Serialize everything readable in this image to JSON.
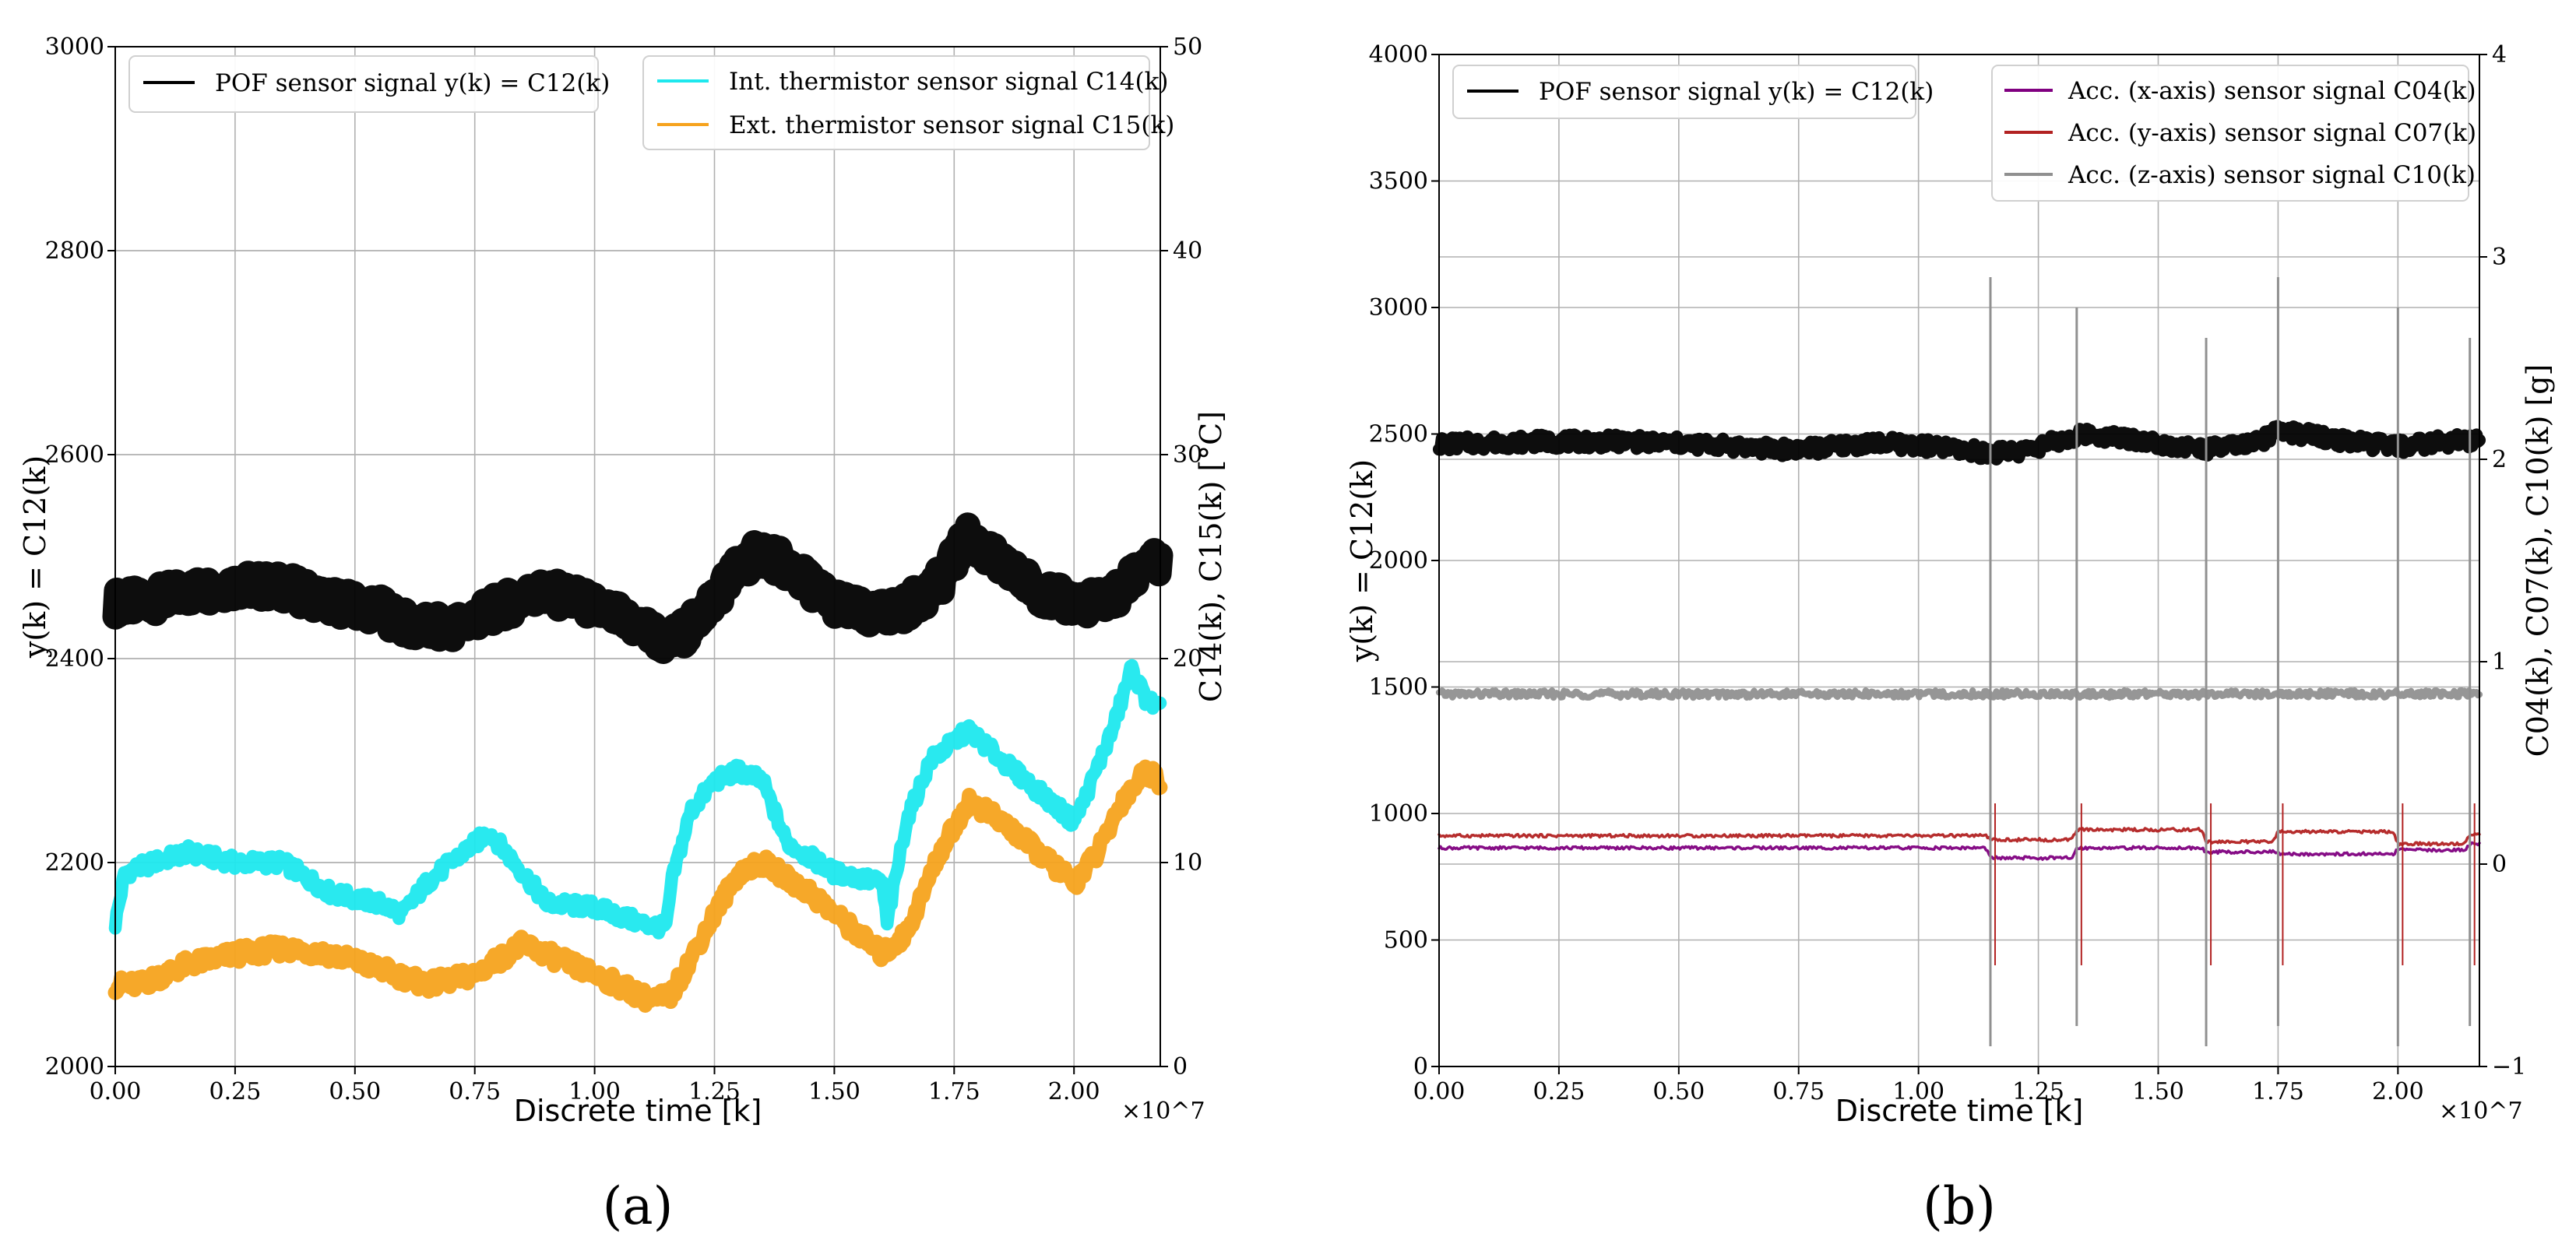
{
  "chart_data": [
    {
      "type": "line",
      "panel_label": "(a)",
      "xlabel": "Discrete time [k]",
      "x_multiplier": "×10^7",
      "xlim": [
        0,
        2.18
      ],
      "x_ticks": [
        "0.00",
        "0.25",
        "0.50",
        "0.75",
        "1.00",
        "1.25",
        "1.50",
        "1.75",
        "2.00"
      ],
      "ylabel_left": "y(k) = C12(k)",
      "ylim_left": [
        2000,
        3000
      ],
      "y_ticks_left": [
        "2000",
        "2200",
        "2400",
        "2600",
        "2800",
        "3000"
      ],
      "ylabel_right": "C14(k), C15(k) [°C]",
      "ylim_right": [
        0,
        50
      ],
      "y_ticks_right": [
        "0",
        "10",
        "20",
        "30",
        "40",
        "50"
      ],
      "grid": true,
      "legends": [
        {
          "placement": "top-left",
          "entries": [
            "POF sensor signal y(k) = C12(k)"
          ]
        },
        {
          "placement": "top-right",
          "entries": [
            "Int. thermistor sensor signal C14(k)",
            "Ext. thermistor sensor signal C15(k)"
          ]
        }
      ],
      "series": [
        {
          "name": "POF sensor signal y(k) = C12(k)",
          "axis": "left",
          "color": "#000000",
          "band": 28,
          "x": [
            0.0,
            0.05,
            0.15,
            0.25,
            0.35,
            0.45,
            0.55,
            0.62,
            0.7,
            0.8,
            0.88,
            0.95,
            1.05,
            1.12,
            1.15,
            1.2,
            1.25,
            1.3,
            1.35,
            1.4,
            1.5,
            1.58,
            1.6,
            1.65,
            1.72,
            1.78,
            1.85,
            1.95,
            2.0,
            2.05,
            2.1,
            2.15,
            2.18
          ],
          "y": [
            2455,
            2455,
            2465,
            2472,
            2470,
            2456,
            2448,
            2430,
            2430,
            2450,
            2465,
            2460,
            2440,
            2425,
            2415,
            2430,
            2460,
            2490,
            2505,
            2490,
            2455,
            2440,
            2445,
            2450,
            2475,
            2520,
            2490,
            2460,
            2455,
            2455,
            2465,
            2495,
            2490
          ]
        },
        {
          "name": "Int. thermistor sensor signal C14(k)",
          "axis": "right",
          "color": "#1ee8ee",
          "band": 0.7,
          "x": [
            0.0,
            0.02,
            0.08,
            0.15,
            0.25,
            0.35,
            0.45,
            0.55,
            0.6,
            0.65,
            0.7,
            0.78,
            0.85,
            0.9,
            1.0,
            1.1,
            1.15,
            1.16,
            1.2,
            1.25,
            1.3,
            1.35,
            1.4,
            1.5,
            1.6,
            1.61,
            1.65,
            1.7,
            1.78,
            1.85,
            1.95,
            2.0,
            2.02,
            2.08,
            2.12,
            2.15,
            2.18
          ],
          "y": [
            7,
            9.5,
            10,
            10.5,
            10,
            10,
            8.5,
            8,
            7.5,
            9,
            10,
            11.5,
            9.5,
            8,
            7.8,
            7,
            6.8,
            9,
            12.5,
            14,
            14.5,
            14,
            11,
            9.5,
            9,
            7,
            12,
            15,
            16.5,
            15,
            13,
            12,
            13,
            16.5,
            19.5,
            18,
            17.5
          ]
        },
        {
          "name": "Ext. thermistor sensor signal C15(k)",
          "axis": "right",
          "color": "#f6a31e",
          "band": 0.8,
          "x": [
            0.0,
            0.05,
            0.15,
            0.25,
            0.35,
            0.45,
            0.55,
            0.65,
            0.75,
            0.85,
            0.95,
            1.05,
            1.12,
            1.16,
            1.25,
            1.3,
            1.35,
            1.45,
            1.55,
            1.6,
            1.65,
            1.72,
            1.78,
            1.85,
            1.95,
            2.0,
            2.05,
            2.1,
            2.15,
            2.18
          ],
          "y": [
            4,
            4,
            5,
            5.5,
            5.8,
            5.5,
            4.8,
            4,
            4.5,
            6,
            5,
            4,
            3.2,
            3.5,
            7.5,
            9.5,
            10,
            8.5,
            6.5,
            5.5,
            6.5,
            10.5,
            13,
            12,
            10,
            9,
            10.5,
            13,
            14.5,
            14
          ]
        }
      ]
    },
    {
      "type": "line",
      "panel_label": "(b)",
      "xlabel": "Discrete time [k]",
      "x_multiplier": "×10^7",
      "xlim": [
        0,
        2.17
      ],
      "x_ticks": [
        "0.00",
        "0.25",
        "0.50",
        "0.75",
        "1.00",
        "1.25",
        "1.50",
        "1.75",
        "2.00"
      ],
      "ylabel_left": "y(k) = C12(k)",
      "ylim_left": [
        0,
        4000
      ],
      "y_ticks_left": [
        "0",
        "500",
        "1000",
        "1500",
        "2000",
        "2500",
        "3000",
        "3500",
        "4000"
      ],
      "ylabel_right": "C04(k), C07(k), C10(k) [g]",
      "ylim_right": [
        -1,
        4
      ],
      "y_ticks_right": [
        "−1",
        "0",
        "1",
        "2",
        "3",
        "4"
      ],
      "grid": true,
      "legends": [
        {
          "placement": "top-left",
          "entries": [
            "POF sensor signal y(k) = C12(k)"
          ]
        },
        {
          "placement": "top-right",
          "entries": [
            "Acc. (x-axis) sensor signal C04(k)",
            "Acc. (y-axis) sensor signal C07(k)",
            "Acc. (z-axis) sensor signal C10(k)"
          ]
        }
      ],
      "spike_events_x": [
        1.15,
        1.33,
        1.6,
        1.75,
        2.0,
        2.15
      ],
      "series": [
        {
          "name": "POF sensor signal y(k) = C12(k)",
          "axis": "left",
          "color": "#000000",
          "band": 55,
          "x": [
            0.0,
            0.2,
            0.4,
            0.6,
            0.7,
            0.8,
            0.9,
            1.0,
            1.15,
            1.2,
            1.3,
            1.35,
            1.45,
            1.55,
            1.6,
            1.7,
            1.75,
            1.8,
            1.9,
            2.0,
            2.1,
            2.17
          ],
          "y": [
            2460,
            2470,
            2470,
            2455,
            2440,
            2445,
            2465,
            2455,
            2425,
            2430,
            2475,
            2500,
            2480,
            2450,
            2440,
            2460,
            2510,
            2500,
            2470,
            2450,
            2470,
            2475
          ]
        },
        {
          "name": "Acc. (x-axis) sensor signal C04(k)",
          "axis": "right",
          "color": "#800080",
          "band": 0.015,
          "x": [
            0.0,
            1.14,
            1.15,
            1.32,
            1.33,
            1.59,
            1.6,
            1.74,
            1.75,
            1.99,
            2.0,
            2.14,
            2.15,
            2.17
          ],
          "y": [
            0.08,
            0.08,
            0.03,
            0.03,
            0.08,
            0.08,
            0.06,
            0.06,
            0.05,
            0.05,
            0.07,
            0.07,
            0.1,
            0.1
          ]
        },
        {
          "name": "Acc. (y-axis) sensor signal C07(k)",
          "axis": "right",
          "color": "#b22222",
          "band": 0.015,
          "x": [
            0.0,
            1.14,
            1.15,
            1.32,
            1.33,
            1.59,
            1.6,
            1.74,
            1.75,
            1.99,
            2.0,
            2.14,
            2.15,
            2.17
          ],
          "y": [
            0.14,
            0.14,
            0.12,
            0.12,
            0.17,
            0.17,
            0.11,
            0.11,
            0.16,
            0.16,
            0.1,
            0.1,
            0.15,
            0.15
          ]
        },
        {
          "name": "Acc. (z-axis) sensor signal C10(k)",
          "axis": "right",
          "color": "#909090",
          "band": 0.035,
          "x": [
            0.0,
            2.17
          ],
          "y": [
            0.84,
            0.84
          ]
        }
      ]
    }
  ]
}
